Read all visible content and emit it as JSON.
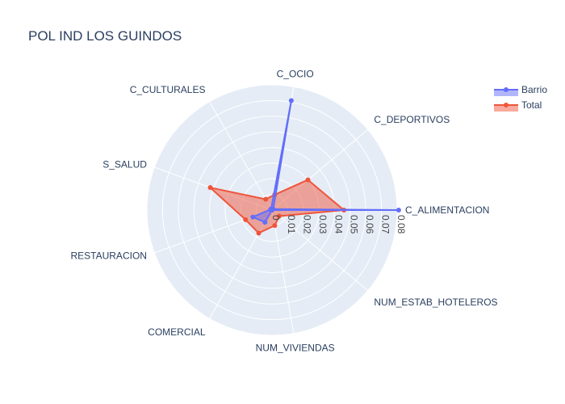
{
  "chart_data": {
    "type": "radar",
    "title": "POL IND LOS GUINDOS",
    "categories": [
      "C_ALIMENTACION",
      "C_DEPORTIVOS",
      "C_OCIO",
      "C_CULTURALES",
      "S_SALUD",
      "RESTAURACION",
      "COMERCIAL",
      "NUM_VIVIENDAS",
      "NUM_ESTAB_HOTELEROS"
    ],
    "radial_ticks": [
      "0",
      "0.01",
      "0.02",
      "0.03",
      "0.04",
      "0.05",
      "0.06",
      "0.07",
      "0.08"
    ],
    "radial_range": [
      0,
      0.08
    ],
    "series": [
      {
        "name": "Barrio",
        "color": "#636efa",
        "values": [
          0.081,
          0.001,
          0.071,
          0.001,
          0.001,
          0.013,
          0.009,
          0.0,
          0.0
        ]
      },
      {
        "name": "Total",
        "color": "#ef553b",
        "values": [
          0.046,
          0.03,
          0.01,
          0.008,
          0.042,
          0.018,
          0.017,
          0.01,
          0.006
        ]
      }
    ],
    "legend_position": "top-right",
    "grid": true
  },
  "colors": {
    "polar_background": "#e5ecf6",
    "grid": "#ffffff"
  }
}
